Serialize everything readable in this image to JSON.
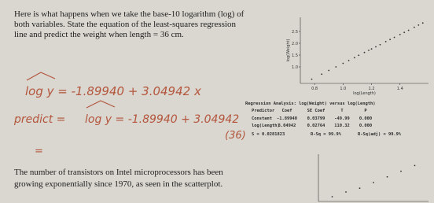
{
  "intro": {
    "lines": [
      "Here is what happens when we take the base-10 logarithm (log) of",
      "both variables. State the equation of the least-squares regression",
      "line and predict the weight when length = 36 cm."
    ]
  },
  "handwriting": {
    "equation": "log y = -1.89940 + 3.04942 x",
    "prediction_label": "predict =",
    "prediction": "log y = -1.89940 + 3.04942",
    "substitution": "(36)",
    "result": "="
  },
  "plot1": {
    "type": "scatter",
    "x_label": "log(Length)",
    "y_label": "log(Weight)",
    "x": [
      0.78,
      0.85,
      0.9,
      0.95,
      1.0,
      1.04,
      1.08,
      1.11,
      1.15,
      1.18,
      1.2,
      1.23,
      1.26,
      1.3,
      1.33,
      1.36,
      1.4,
      1.43,
      1.46,
      1.5,
      1.53,
      1.56
    ],
    "y": [
      0.48,
      0.69,
      0.85,
      1.0,
      1.15,
      1.27,
      1.39,
      1.49,
      1.61,
      1.7,
      1.76,
      1.85,
      1.94,
      2.07,
      2.16,
      2.25,
      2.37,
      2.46,
      2.55,
      2.68,
      2.77,
      2.86
    ],
    "xlim": [
      0.7,
      1.6
    ],
    "ylim": [
      0.3,
      3.1
    ],
    "xticks": [
      0.8,
      {
        "value": 1,
        "label": "1.0"
      },
      1.2,
      1.4
    ],
    "yticks": [
      {
        "value": 1,
        "label": "1.0"
      },
      1.5,
      {
        "value": 2,
        "label": "2.0"
      },
      2.5
    ]
  },
  "regression": {
    "title": "Regression Analysis: log(Weight) versus log(Length)",
    "header": [
      "Predictor",
      "Coef",
      "SE Coef",
      "T",
      "P"
    ],
    "rows": [
      [
        "Constant",
        "-1.89940",
        "0.03799",
        "-49.99",
        "0.000"
      ],
      [
        "log(Length)",
        "3.04942",
        "0.02764",
        "110.32",
        "0.000"
      ]
    ],
    "summary": [
      "S = 0.0281823",
      "R-Sq = 99.9%",
      "R-Sq(adj) = 99.9%"
    ]
  },
  "outro": {
    "lines": [
      "The number of transistors on Intel microprocessors has been",
      "growing exponentially since 1970, as seen in the scatterplot."
    ]
  },
  "plot2": {
    "type": "scatter",
    "x": [
      1975,
      1980,
      1985,
      1990,
      1995,
      2000,
      2005
    ],
    "y": [
      0.5,
      1,
      1.4,
      2,
      2.6,
      3.2,
      3.8
    ],
    "xlim": [
      1970,
      2010
    ],
    "ylim": [
      0,
      5
    ]
  }
}
